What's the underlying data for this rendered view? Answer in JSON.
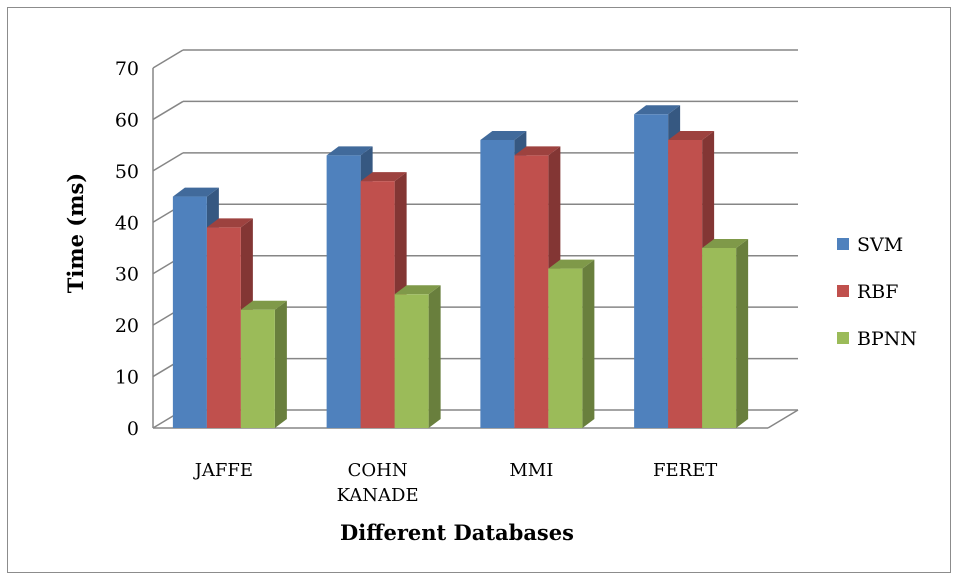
{
  "chart_data": {
    "type": "bar",
    "title": "",
    "xlabel": "Different Databases",
    "ylabel": "Time (ms)",
    "ylim": [
      0,
      70
    ],
    "yticks": [
      "0",
      "10",
      "20",
      "30",
      "40",
      "50",
      "60",
      "70"
    ],
    "categories": [
      [
        "JAFFE"
      ],
      [
        "COHN",
        "KANADE"
      ],
      [
        "MMI"
      ],
      [
        "FERET"
      ]
    ],
    "series": [
      {
        "name": "SVM",
        "values": [
          45,
          53,
          56,
          61
        ],
        "color": "#4f81bd"
      },
      {
        "name": "RBF",
        "values": [
          39,
          48,
          53,
          56
        ],
        "color": "#c0504d"
      },
      {
        "name": "BPNN",
        "values": [
          23,
          26,
          31,
          35
        ],
        "color": "#9bbb59"
      }
    ],
    "grid": true,
    "legend_position": "right",
    "style": "3d-clustered-column"
  }
}
